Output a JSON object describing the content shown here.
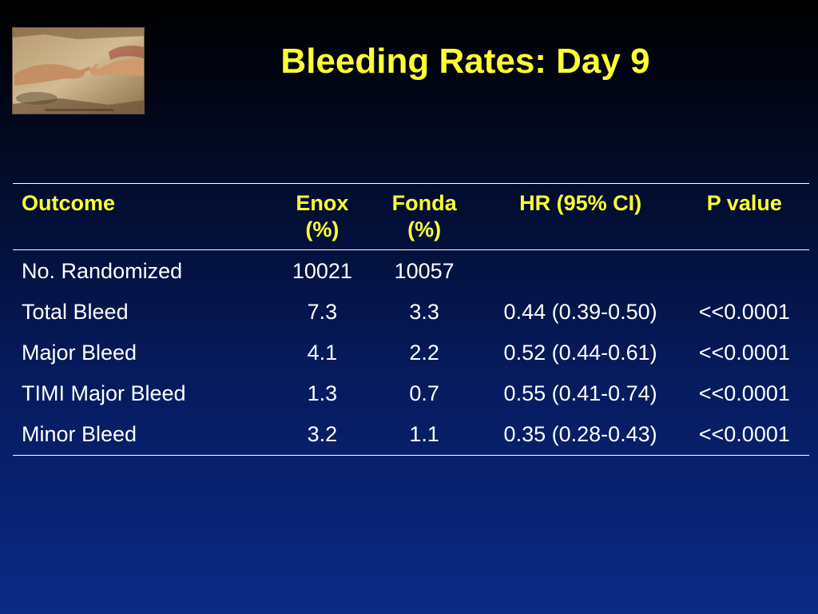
{
  "slide": {
    "title": "Bleeding Rates: Day 9"
  },
  "table": {
    "headers": {
      "outcome": "Outcome",
      "enox_line1": "Enox",
      "enox_line2": "(%)",
      "fonda_line1": "Fonda",
      "fonda_line2": "(%)",
      "hr": "HR (95% CI)",
      "p_value": "P value"
    },
    "rows": [
      {
        "outcome": "No. Randomized",
        "enox": "10021",
        "fonda": "10057",
        "hr": "",
        "p": ""
      },
      {
        "outcome": "Total Bleed",
        "enox": "7.3",
        "fonda": "3.3",
        "hr": "0.44 (0.39-0.50)",
        "p": "<<0.0001"
      },
      {
        "outcome": "Major Bleed",
        "enox": "4.1",
        "fonda": "2.2",
        "hr": "0.52 (0.44-0.61)",
        "p": "<<0.0001"
      },
      {
        "outcome": "TIMI Major Bleed",
        "enox": "1.3",
        "fonda": "0.7",
        "hr": "0.55 (0.41-0.74)",
        "p": "<<0.0001"
      },
      {
        "outcome": "Minor Bleed",
        "enox": "3.2",
        "fonda": "1.1",
        "hr": "0.35 (0.28-0.43)",
        "p": "<<0.0001"
      }
    ]
  },
  "colors": {
    "title": "#ffff33",
    "header_text": "#ffff33",
    "body_text": "#ffffff",
    "rule": "#ffffff"
  },
  "image": {
    "icon": "creation-of-adam-fresco-icon"
  }
}
